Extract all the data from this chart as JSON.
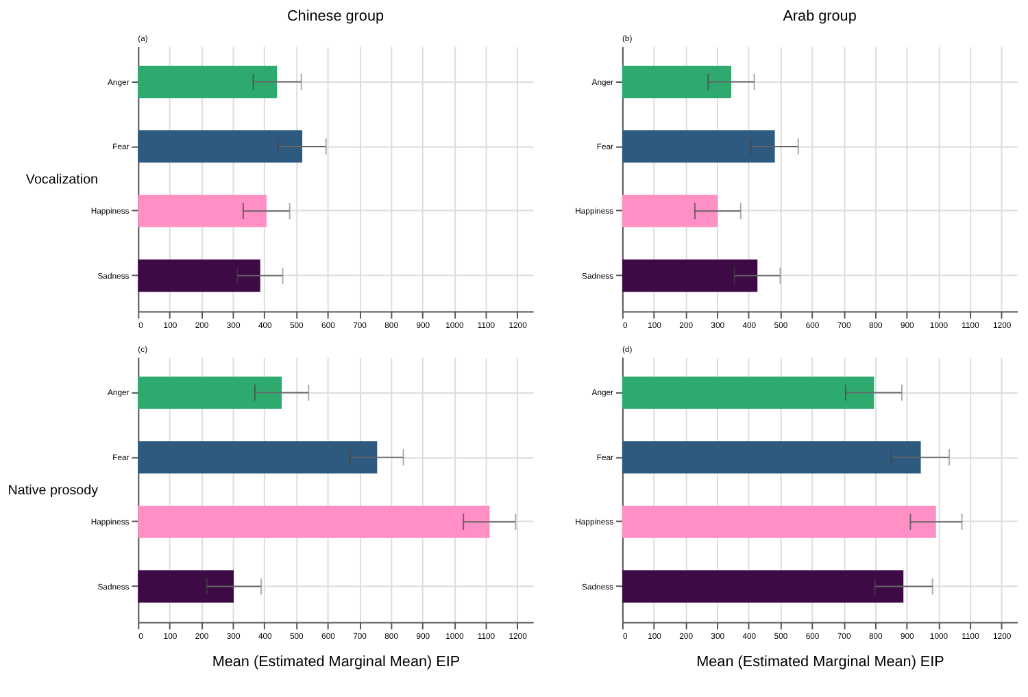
{
  "chart_data": [
    {
      "type": "bar",
      "orientation": "horizontal",
      "title": "Chinese group",
      "ylabel": "Vocalization",
      "annotations": [
        "(a)"
      ],
      "categories": [
        "Anger",
        "Fear",
        "Happiness",
        "Sadness"
      ],
      "values": [
        440,
        520,
        407,
        387
      ],
      "colors": [
        "#2eaa6e",
        "#2d5a7e",
        "#ff8fc4",
        "#3d0a45"
      ],
      "errors": [
        [
          365,
          517
        ],
        [
          443,
          595
        ],
        [
          333,
          480
        ],
        [
          315,
          458
        ]
      ],
      "xlim": [
        0,
        1250
      ],
      "xticks": [
        0,
        100,
        200,
        300,
        400,
        500,
        600,
        700,
        800,
        900,
        1000,
        1100,
        1200
      ],
      "grid": true,
      "legend": false
    },
    {
      "type": "bar",
      "orientation": "horizontal",
      "title": "Arab group",
      "annotations": [
        "(b)"
      ],
      "categories": [
        "Anger",
        "Fear",
        "Happiness",
        "Sadness"
      ],
      "values": [
        345,
        483,
        302,
        428
      ],
      "colors": [
        "#2eaa6e",
        "#2d5a7e",
        "#ff8fc4",
        "#3d0a45"
      ],
      "errors": [
        [
          272,
          418
        ],
        [
          408,
          557
        ],
        [
          230,
          375
        ],
        [
          355,
          500
        ]
      ],
      "xlim": [
        0,
        1250
      ],
      "xticks": [
        0,
        100,
        200,
        300,
        400,
        500,
        600,
        700,
        800,
        900,
        1000,
        1100,
        1200
      ],
      "grid": true,
      "legend": false
    },
    {
      "type": "bar",
      "orientation": "horizontal",
      "ylabel": "Native prosody",
      "xlabel": "Mean (Estimated Marginal Mean) EIP",
      "annotations": [
        "(c)"
      ],
      "categories": [
        "Anger",
        "Fear",
        "Happiness",
        "Sadness"
      ],
      "values": [
        455,
        757,
        1113,
        303
      ],
      "colors": [
        "#2eaa6e",
        "#2d5a7e",
        "#ff8fc4",
        "#3d0a45"
      ],
      "errors": [
        [
          370,
          540
        ],
        [
          672,
          840
        ],
        [
          1030,
          1195
        ],
        [
          218,
          390
        ]
      ],
      "xlim": [
        0,
        1250
      ],
      "xticks": [
        0,
        100,
        200,
        300,
        400,
        500,
        600,
        700,
        800,
        900,
        1000,
        1100,
        1200
      ],
      "grid": true,
      "legend": false
    },
    {
      "type": "bar",
      "orientation": "horizontal",
      "xlabel": "Mean (Estimated Marginal Mean) EIP",
      "annotations": [
        "(d)"
      ],
      "categories": [
        "Anger",
        "Fear",
        "Happiness",
        "Sadness"
      ],
      "values": [
        797,
        945,
        993,
        890
      ],
      "colors": [
        "#2eaa6e",
        "#2d5a7e",
        "#ff8fc4",
        "#3d0a45"
      ],
      "errors": [
        [
          707,
          885
        ],
        [
          852,
          1035
        ],
        [
          912,
          1075
        ],
        [
          800,
          982
        ]
      ],
      "xlim": [
        0,
        1250
      ],
      "xticks": [
        0,
        100,
        200,
        300,
        400,
        500,
        600,
        700,
        800,
        900,
        1000,
        1100,
        1200
      ],
      "grid": true,
      "legend": false
    }
  ]
}
